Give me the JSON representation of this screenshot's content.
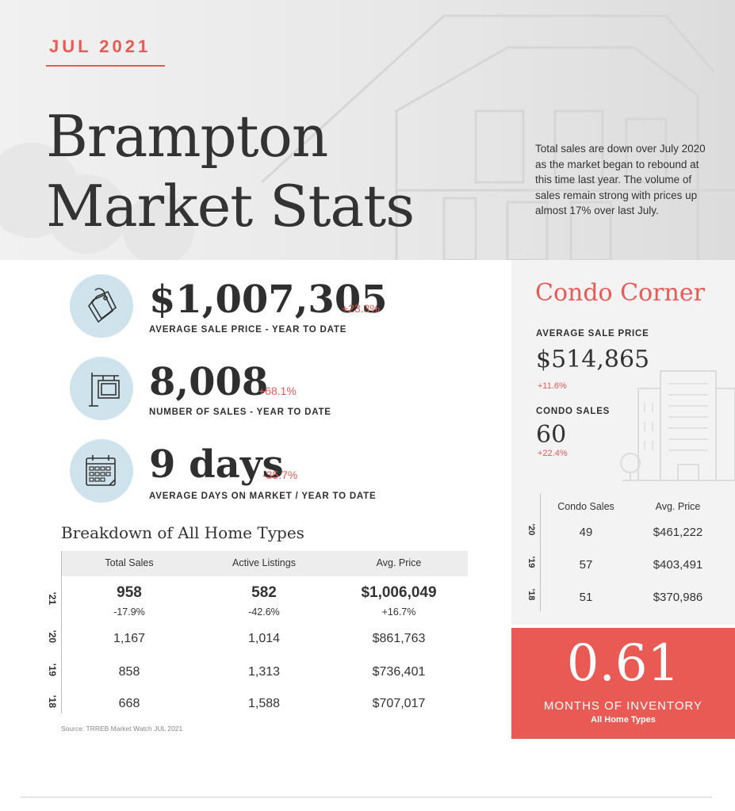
{
  "header": {
    "month": "JUL 2021",
    "title_line1": "Brampton",
    "title_line2": "Market Stats",
    "intro": "Total sales are down over July 2020 as the market began to rebound at this time last year. The volume of sales remain strong with prices up almost 17% over last July."
  },
  "stats": [
    {
      "icon": "price-tag-icon",
      "value": "$1,007,305",
      "change": "+23.3%",
      "label": "AVERAGE SALE PRICE - YEAR TO DATE"
    },
    {
      "icon": "for-sale-sign-icon",
      "value": "8,008",
      "change": "+68.1%",
      "label": "NUMBER OF SALES - YEAR TO DATE"
    },
    {
      "icon": "calendar-icon",
      "value": "9 days",
      "change": "-35.7%",
      "label": "AVERAGE DAYS ON MARKET / YEAR TO DATE"
    }
  ],
  "breakdown": {
    "title": "Breakdown of All Home Types",
    "headers": [
      "Total Sales",
      "Active Listings",
      "Avg. Price"
    ],
    "rows": [
      {
        "year": "'21",
        "sales": "958",
        "sales_change": "-17.9%",
        "listings": "582",
        "listings_change": "-42.6%",
        "price": "$1,006,049",
        "price_change": "+16.7%"
      },
      {
        "year": "'20",
        "sales": "1,167",
        "listings": "1,014",
        "price": "$861,763"
      },
      {
        "year": "'19",
        "sales": "858",
        "listings": "1,313",
        "price": "$736,401"
      },
      {
        "year": "'18",
        "sales": "668",
        "listings": "1,588",
        "price": "$707,017"
      }
    ],
    "source": "Source: TRREB Market Watch JUL 2021"
  },
  "condo": {
    "title": "Condo Corner",
    "avg_price_label": "AVERAGE SALE PRICE",
    "avg_price": "$514,865",
    "avg_price_change": "+11.6%",
    "sales_label": "CONDO SALES",
    "sales": "60",
    "sales_change": "+22.4%",
    "headers": [
      "Condo Sales",
      "Avg. Price"
    ],
    "rows": [
      {
        "year": "'20",
        "sales": "49",
        "price": "$461,222"
      },
      {
        "year": "'19",
        "sales": "57",
        "price": "$403,491"
      },
      {
        "year": "'18",
        "sales": "51",
        "price": "$370,986"
      }
    ]
  },
  "inventory": {
    "value": "0.61",
    "label": "MONTHS OF INVENTORY",
    "sub": "All Home Types"
  },
  "colors": {
    "accent": "#ea5a54",
    "icon_circle": "#cfe3ec",
    "panel": "#f3f3f3"
  }
}
